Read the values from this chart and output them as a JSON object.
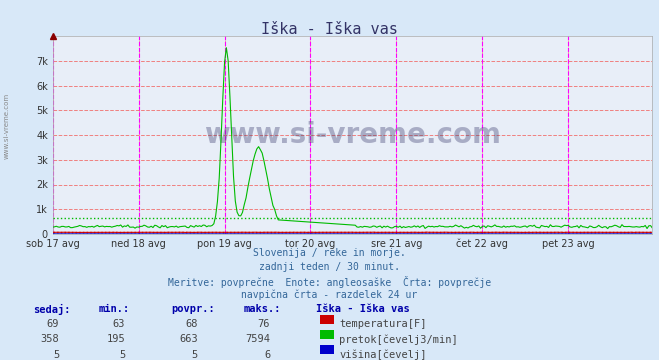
{
  "title": "Iška - Iška vas",
  "bg_color": "#d8e8f8",
  "plot_bg_color": "#e8eef8",
  "grid_color_h": "#f08080",
  "grid_color_v": "#f08080",
  "vline_color": "#ff00ff",
  "x_tick_labels": [
    "sob 17 avg",
    "ned 18 avg",
    "pon 19 avg",
    "tor 20 avg",
    "sre 21 avg",
    "čet 22 avg",
    "pet 23 avg"
  ],
  "x_tick_positions": [
    0,
    48,
    96,
    144,
    192,
    240,
    288
  ],
  "n_points": 336,
  "ylim": [
    0,
    8000
  ],
  "yticks": [
    0,
    1000,
    2000,
    3000,
    4000,
    5000,
    6000,
    7000
  ],
  "ytick_labels": [
    "0",
    "1k",
    "2k",
    "3k",
    "4k",
    "5k",
    "6k",
    "7k"
  ],
  "temp_color": "#cc0000",
  "flow_color": "#00bb00",
  "height_color": "#0000cc",
  "avg_flow": 663,
  "avg_temp": 68,
  "avg_height": 5,
  "subtitle_lines": [
    "Slovenija / reke in morje.",
    "zadnji teden / 30 minut.",
    "Meritve: povprečne  Enote: angleosaške  Črta: povprečje",
    "navpična črta - razdelek 24 ur"
  ],
  "table_headers": [
    "sedaj:",
    "min.:",
    "povpr.:",
    "maks.:",
    "Iška - Iška vas"
  ],
  "table_data": [
    [
      69,
      63,
      68,
      76,
      "temperatura[F]",
      "#cc0000"
    ],
    [
      358,
      195,
      663,
      7594,
      "pretok[čevelj3/min]",
      "#00bb00"
    ],
    [
      5,
      5,
      5,
      6,
      "višina[čevelj]",
      "#0000cc"
    ]
  ],
  "watermark": "www.si-vreme.com",
  "left_label": "www.si-vreme.com"
}
